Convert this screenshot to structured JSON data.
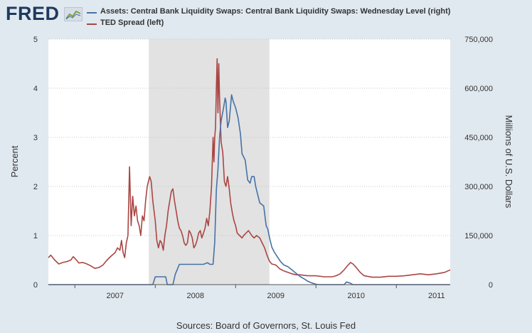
{
  "header": {
    "logo_text": "FRED",
    "logo_icon": "chart-line-icon"
  },
  "legend": [
    {
      "label": "Assets: Central Bank Liquidity Swaps: Central Bank Liquidity Swaps: Wednesday Level (right)",
      "color": "#4572a7"
    },
    {
      "label": "TED Spread (left)",
      "color": "#aa4643"
    }
  ],
  "source_text": "Sources: Board of Governors, St. Louis Fed",
  "chart_data": {
    "type": "line",
    "x_ticks": [
      "2007",
      "2008",
      "2009",
      "2010",
      "2011"
    ],
    "x_range": [
      2006.67,
      2011.67
    ],
    "recession": [
      2007.92,
      2009.42
    ],
    "left_axis": {
      "title": "Percent",
      "ylim": [
        0,
        5
      ],
      "ticks": [
        "0",
        "1",
        "2",
        "3",
        "4",
        "5"
      ]
    },
    "right_axis": {
      "title": "Millions of U.S. Dollars",
      "ylim": [
        0,
        750000
      ],
      "ticks": [
        "0",
        "150,000",
        "300,000",
        "450,000",
        "600,000",
        "750,000"
      ]
    },
    "series": [
      {
        "name": "TED Spread (left)",
        "axis": "left",
        "color": "#aa4643",
        "points": [
          [
            2006.67,
            0.55
          ],
          [
            2006.7,
            0.6
          ],
          [
            2006.75,
            0.5
          ],
          [
            2006.8,
            0.42
          ],
          [
            2006.85,
            0.45
          ],
          [
            2006.9,
            0.47
          ],
          [
            2006.95,
            0.5
          ],
          [
            2006.98,
            0.57
          ],
          [
            2007.02,
            0.5
          ],
          [
            2007.05,
            0.44
          ],
          [
            2007.1,
            0.45
          ],
          [
            2007.15,
            0.42
          ],
          [
            2007.2,
            0.38
          ],
          [
            2007.25,
            0.33
          ],
          [
            2007.3,
            0.35
          ],
          [
            2007.35,
            0.4
          ],
          [
            2007.4,
            0.5
          ],
          [
            2007.45,
            0.58
          ],
          [
            2007.5,
            0.65
          ],
          [
            2007.53,
            0.75
          ],
          [
            2007.56,
            0.7
          ],
          [
            2007.58,
            0.9
          ],
          [
            2007.6,
            0.65
          ],
          [
            2007.62,
            0.55
          ],
          [
            2007.64,
            0.85
          ],
          [
            2007.66,
            1.0
          ],
          [
            2007.68,
            2.4
          ],
          [
            2007.7,
            1.2
          ],
          [
            2007.72,
            1.8
          ],
          [
            2007.74,
            1.4
          ],
          [
            2007.76,
            1.6
          ],
          [
            2007.78,
            1.3
          ],
          [
            2007.8,
            1.2
          ],
          [
            2007.82,
            1.0
          ],
          [
            2007.84,
            1.4
          ],
          [
            2007.86,
            1.3
          ],
          [
            2007.88,
            1.7
          ],
          [
            2007.9,
            2.0
          ],
          [
            2007.93,
            2.2
          ],
          [
            2007.95,
            2.1
          ],
          [
            2007.97,
            1.7
          ],
          [
            2008.0,
            1.3
          ],
          [
            2008.02,
            0.9
          ],
          [
            2008.04,
            0.75
          ],
          [
            2008.06,
            0.9
          ],
          [
            2008.08,
            0.85
          ],
          [
            2008.1,
            0.7
          ],
          [
            2008.12,
            1.0
          ],
          [
            2008.14,
            1.2
          ],
          [
            2008.16,
            1.5
          ],
          [
            2008.18,
            1.7
          ],
          [
            2008.2,
            1.9
          ],
          [
            2008.22,
            1.95
          ],
          [
            2008.24,
            1.7
          ],
          [
            2008.26,
            1.5
          ],
          [
            2008.28,
            1.3
          ],
          [
            2008.3,
            1.15
          ],
          [
            2008.32,
            1.1
          ],
          [
            2008.34,
            1.0
          ],
          [
            2008.36,
            0.85
          ],
          [
            2008.38,
            0.8
          ],
          [
            2008.4,
            0.85
          ],
          [
            2008.42,
            1.1
          ],
          [
            2008.44,
            1.05
          ],
          [
            2008.46,
            0.95
          ],
          [
            2008.48,
            0.75
          ],
          [
            2008.5,
            0.8
          ],
          [
            2008.52,
            0.9
          ],
          [
            2008.54,
            1.05
          ],
          [
            2008.56,
            1.1
          ],
          [
            2008.58,
            0.95
          ],
          [
            2008.6,
            1.05
          ],
          [
            2008.62,
            1.15
          ],
          [
            2008.64,
            1.35
          ],
          [
            2008.66,
            1.2
          ],
          [
            2008.68,
            1.5
          ],
          [
            2008.7,
            2.0
          ],
          [
            2008.72,
            3.0
          ],
          [
            2008.73,
            2.5
          ],
          [
            2008.74,
            3.0
          ],
          [
            2008.75,
            3.2
          ],
          [
            2008.76,
            4.0
          ],
          [
            2008.77,
            4.6
          ],
          [
            2008.78,
            3.5
          ],
          [
            2008.79,
            4.5
          ],
          [
            2008.8,
            3.8
          ],
          [
            2008.82,
            2.9
          ],
          [
            2008.84,
            2.7
          ],
          [
            2008.86,
            2.1
          ],
          [
            2008.88,
            2.0
          ],
          [
            2008.9,
            2.2
          ],
          [
            2008.92,
            1.95
          ],
          [
            2008.94,
            1.65
          ],
          [
            2008.96,
            1.45
          ],
          [
            2008.98,
            1.3
          ],
          [
            2009.0,
            1.2
          ],
          [
            2009.02,
            1.05
          ],
          [
            2009.05,
            1.0
          ],
          [
            2009.08,
            0.95
          ],
          [
            2009.1,
            1.0
          ],
          [
            2009.13,
            1.05
          ],
          [
            2009.16,
            1.1
          ],
          [
            2009.2,
            1.0
          ],
          [
            2009.23,
            0.95
          ],
          [
            2009.26,
            1.0
          ],
          [
            2009.3,
            0.95
          ],
          [
            2009.33,
            0.85
          ],
          [
            2009.36,
            0.75
          ],
          [
            2009.39,
            0.6
          ],
          [
            2009.42,
            0.48
          ],
          [
            2009.45,
            0.42
          ],
          [
            2009.5,
            0.4
          ],
          [
            2009.55,
            0.32
          ],
          [
            2009.6,
            0.28
          ],
          [
            2009.65,
            0.25
          ],
          [
            2009.7,
            0.22
          ],
          [
            2009.75,
            0.2
          ],
          [
            2009.8,
            0.2
          ],
          [
            2009.85,
            0.19
          ],
          [
            2009.9,
            0.18
          ],
          [
            2009.95,
            0.18
          ],
          [
            2010.0,
            0.18
          ],
          [
            2010.1,
            0.16
          ],
          [
            2010.2,
            0.16
          ],
          [
            2010.25,
            0.18
          ],
          [
            2010.3,
            0.22
          ],
          [
            2010.35,
            0.3
          ],
          [
            2010.4,
            0.4
          ],
          [
            2010.43,
            0.45
          ],
          [
            2010.46,
            0.42
          ],
          [
            2010.5,
            0.35
          ],
          [
            2010.55,
            0.25
          ],
          [
            2010.6,
            0.18
          ],
          [
            2010.7,
            0.15
          ],
          [
            2010.8,
            0.15
          ],
          [
            2010.9,
            0.17
          ],
          [
            2011.0,
            0.17
          ],
          [
            2011.1,
            0.18
          ],
          [
            2011.2,
            0.2
          ],
          [
            2011.3,
            0.22
          ],
          [
            2011.4,
            0.2
          ],
          [
            2011.5,
            0.22
          ],
          [
            2011.6,
            0.25
          ],
          [
            2011.67,
            0.3
          ]
        ]
      },
      {
        "name": "Central Bank Liquidity Swaps (right)",
        "axis": "right",
        "color": "#4572a7",
        "points": [
          [
            2006.67,
            0
          ],
          [
            2007.93,
            0
          ],
          [
            2007.97,
            0
          ],
          [
            2008.0,
            24000
          ],
          [
            2008.05,
            24000
          ],
          [
            2008.1,
            24000
          ],
          [
            2008.13,
            24000
          ],
          [
            2008.15,
            0
          ],
          [
            2008.22,
            0
          ],
          [
            2008.25,
            32000
          ],
          [
            2008.3,
            62000
          ],
          [
            2008.35,
            62000
          ],
          [
            2008.4,
            62000
          ],
          [
            2008.5,
            62000
          ],
          [
            2008.6,
            62000
          ],
          [
            2008.65,
            67000
          ],
          [
            2008.68,
            62000
          ],
          [
            2008.72,
            62000
          ],
          [
            2008.74,
            130000
          ],
          [
            2008.76,
            290000
          ],
          [
            2008.78,
            350000
          ],
          [
            2008.8,
            450000
          ],
          [
            2008.82,
            500000
          ],
          [
            2008.85,
            540000
          ],
          [
            2008.87,
            570000
          ],
          [
            2008.88,
            560000
          ],
          [
            2008.9,
            480000
          ],
          [
            2008.92,
            500000
          ],
          [
            2008.95,
            580000
          ],
          [
            2008.97,
            560000
          ],
          [
            2009.0,
            540000
          ],
          [
            2009.03,
            510000
          ],
          [
            2009.06,
            460000
          ],
          [
            2009.08,
            400000
          ],
          [
            2009.1,
            390000
          ],
          [
            2009.12,
            380000
          ],
          [
            2009.15,
            320000
          ],
          [
            2009.18,
            310000
          ],
          [
            2009.2,
            330000
          ],
          [
            2009.23,
            330000
          ],
          [
            2009.25,
            300000
          ],
          [
            2009.28,
            270000
          ],
          [
            2009.3,
            250000
          ],
          [
            2009.35,
            240000
          ],
          [
            2009.38,
            180000
          ],
          [
            2009.4,
            170000
          ],
          [
            2009.42,
            145000
          ],
          [
            2009.45,
            115000
          ],
          [
            2009.48,
            100000
          ],
          [
            2009.52,
            85000
          ],
          [
            2009.56,
            70000
          ],
          [
            2009.6,
            60000
          ],
          [
            2009.65,
            55000
          ],
          [
            2009.7,
            45000
          ],
          [
            2009.75,
            35000
          ],
          [
            2009.8,
            25000
          ],
          [
            2009.85,
            18000
          ],
          [
            2009.9,
            10000
          ],
          [
            2009.95,
            5000
          ],
          [
            2010.0,
            1000
          ],
          [
            2010.05,
            0
          ],
          [
            2010.35,
            0
          ],
          [
            2010.38,
            8000
          ],
          [
            2010.42,
            5000
          ],
          [
            2010.46,
            0
          ],
          [
            2011.67,
            0
          ]
        ]
      }
    ]
  }
}
